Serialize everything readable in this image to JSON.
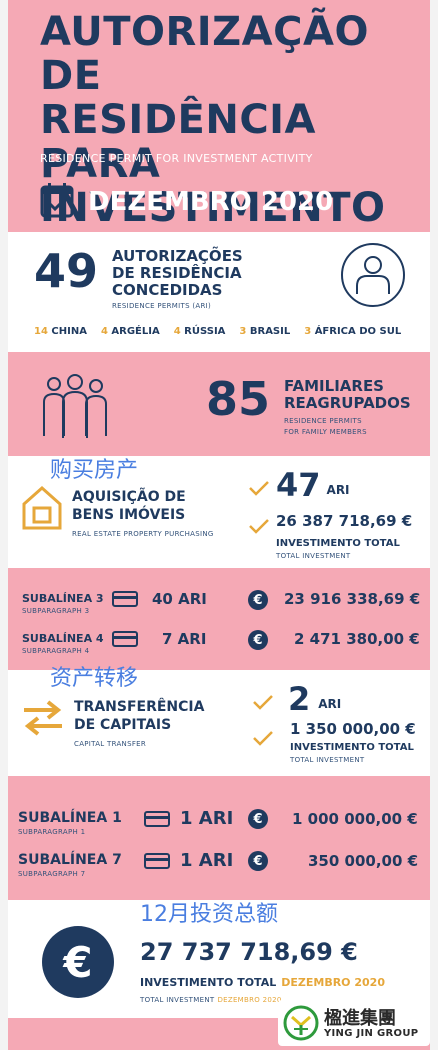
{
  "header": {
    "title_line1": "AUTORIZAÇÃO DE",
    "title_line2": "RESIDÊNCIA PARA",
    "title_line3": "INVESTIMENTO",
    "subtitle": "RESIDENCE PERMIT FOR INVESTMENT ACTIVITY",
    "date": "DEZEMBRO 2020"
  },
  "permits": {
    "count": "49",
    "label_line1": "AUTORIZAÇÕES",
    "label_line2": "DE RESIDÊNCIA",
    "label_line3": "CONCEDIDAS",
    "sub": "RESIDENCE PERMITS (ARI)",
    "countries": [
      {
        "n": "14",
        "name": "CHINA"
      },
      {
        "n": "4",
        "name": "ARGÉLIA"
      },
      {
        "n": "4",
        "name": "RÚSSIA"
      },
      {
        "n": "3",
        "name": "BRASIL"
      },
      {
        "n": "3",
        "name": "ÁFRICA DO SUL"
      }
    ]
  },
  "family": {
    "count": "85",
    "label_line1": "FAMILIARES",
    "label_line2": "REAGRUPADOS",
    "sub_line1": "RESIDENCE PERMITS",
    "sub_line2": "FOR FAMILY MEMBERS"
  },
  "real_estate": {
    "chinese_note": "购买房产",
    "label_line1": "AQUISIÇÃO DE",
    "label_line2": "BENS IMÓVEIS",
    "sub": "REAL ESTATE PROPERTY PURCHASING",
    "ari_count": "47",
    "ari_unit": "ARI",
    "amount": "26 387 718,69 €",
    "amount_label": "INVESTIMENTO TOTAL",
    "amount_sub": "TOTAL INVESTMENT"
  },
  "subparagraphs_a": [
    {
      "label": "SUBALÍNEA 3",
      "sub": "SUBPARAGRAPH 3",
      "ari": "40 ARI",
      "amount": "23 916 338,69 €"
    },
    {
      "label": "SUBALÍNEA 4",
      "sub": "SUBPARAGRAPH 4",
      "ari": "7 ARI",
      "amount": "2 471 380,00 €"
    }
  ],
  "capital": {
    "chinese_note": "资产转移",
    "label_line1": "TRANSFERÊNCIA",
    "label_line2": "DE CAPITAIS",
    "sub": "CAPITAL TRANSFER",
    "ari_count": "2",
    "ari_unit": "ARI",
    "amount": "1 350 000,00 €",
    "amount_label": "INVESTIMENTO TOTAL",
    "amount_sub": "TOTAL INVESTMENT"
  },
  "subparagraphs_b": [
    {
      "label": "SUBALÍNEA 1",
      "sub": "SUBPARAGRAPH 1",
      "ari": "1 ARI",
      "amount": "1 000 000,00 €"
    },
    {
      "label": "SUBALÍNEA 7",
      "sub": "SUBPARAGRAPH 7",
      "ari": "1 ARI",
      "amount": "350 000,00 €"
    }
  ],
  "total": {
    "chinese_note": "12月投资总额",
    "amount": "27 737 718,69 €",
    "label": "INVESTIMENTO TOTAL",
    "label_date": "DEZEMBRO 2020",
    "sub": "TOTAL INVESTMENT",
    "sub_date": "DEZEMBRO 2020"
  },
  "logo": {
    "name_cn": "楹進集團",
    "name_en": "YING JIN GROUP"
  },
  "colors": {
    "navy": "#1f3a5f",
    "pink": "#f5a9b5",
    "gold": "#e6a73a",
    "chinese_blue": "#4a7ee0"
  }
}
